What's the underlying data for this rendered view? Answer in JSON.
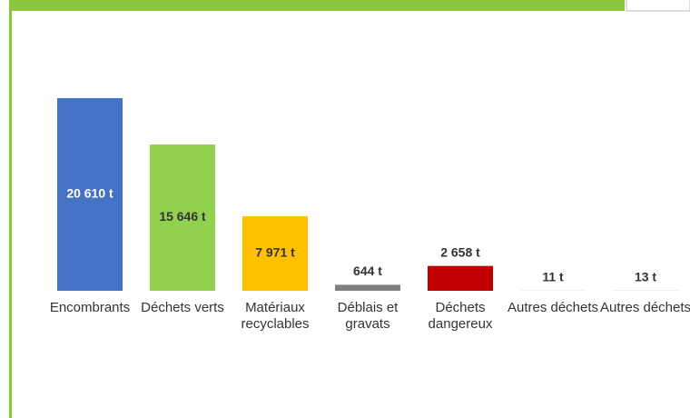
{
  "chart_data": {
    "type": "bar",
    "categories": [
      "Encombrants",
      "Déchets verts",
      "Matériaux recyclables",
      "Déblais et gravats",
      "Déchets dangereux",
      "Autres déchets",
      "Autres déchets"
    ],
    "values": [
      20610,
      15646,
      7971,
      644,
      2658,
      11,
      13
    ],
    "value_labels": [
      "20 610 t",
      "15 646 t",
      "7 971 t",
      "644 t",
      "2 658 t",
      "11 t",
      "13 t"
    ],
    "colors": [
      "#4472c4",
      "#92d050",
      "#ffc000",
      "#7f7f7f",
      "#c00000",
      "#7f7f7f",
      "#7f7f7f"
    ]
  }
}
